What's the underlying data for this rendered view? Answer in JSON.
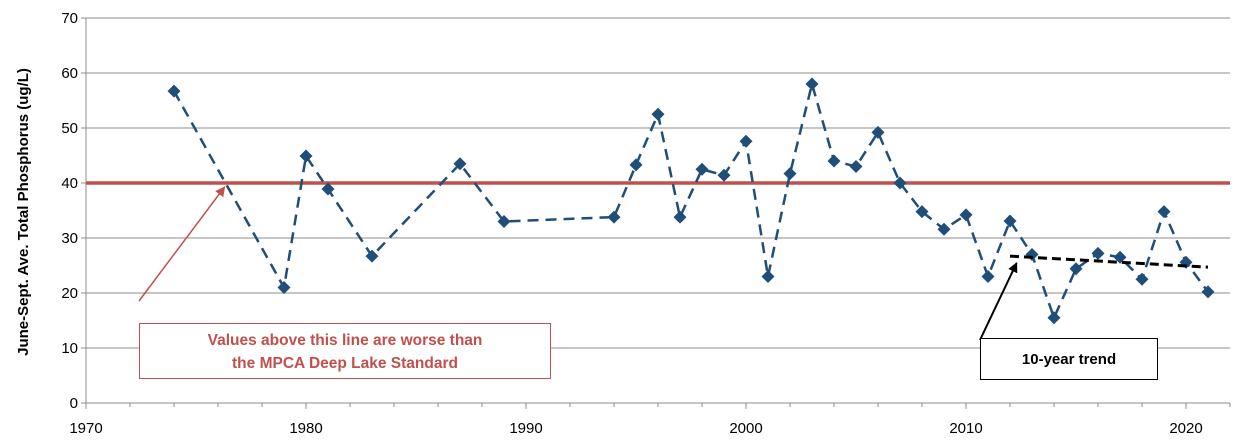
{
  "chart_data": {
    "type": "scatter",
    "ylabel": "June-Sept. Ave. Total Phosphorus (ug/L)",
    "xlabel": "",
    "xlim": [
      1970,
      2022
    ],
    "ylim": [
      0,
      70
    ],
    "x_ticks": [
      "1970",
      "1980",
      "1990",
      "2000",
      "2010",
      "2020"
    ],
    "y_ticks": [
      "0",
      "10",
      "20",
      "30",
      "40",
      "50",
      "60",
      "70"
    ],
    "grid": "horizontal",
    "series": [
      {
        "color": "#1f4e79",
        "marker": "diamond",
        "line": "dashed",
        "x": [
          1974,
          1979,
          1980,
          1981,
          1983,
          1987,
          1989,
          1994,
          1995,
          1996,
          1997,
          1998,
          1999,
          2000,
          2001,
          2002,
          2003,
          2004,
          2005,
          2006,
          2007,
          2008,
          2009,
          2010,
          2011,
          2012,
          2013,
          2014,
          2015,
          2016,
          2017,
          2018,
          2019,
          2020,
          2021
        ],
        "y": [
          56.7,
          21,
          44.9,
          38.9,
          26.7,
          43.5,
          33,
          33.8,
          43.3,
          52.5,
          33.8,
          42.5,
          41.4,
          47.6,
          23,
          41.7,
          58,
          44,
          43,
          49.2,
          40,
          34.8,
          31.6,
          34.2,
          23,
          33.1,
          27,
          15.5,
          24.4,
          27.2,
          26.5,
          22.5,
          34.8,
          25.6,
          20.2
        ]
      }
    ],
    "reference_line": {
      "y": 40,
      "color": "#c0504d"
    },
    "trend_line": {
      "x": [
        2012,
        2021
      ],
      "y": [
        26.7,
        24.7
      ],
      "color": "#000000"
    },
    "annotations": {
      "standard": {
        "lines": [
          "Values above this line are worse than",
          "the MPCA Deep Lake Standard"
        ],
        "color": "#c0504d",
        "arrow_to": [
          1976.3,
          40
        ]
      },
      "trend": {
        "text": "10-year trend",
        "color": "#000000",
        "arrow_to": [
          2012.3,
          26
        ]
      }
    }
  }
}
